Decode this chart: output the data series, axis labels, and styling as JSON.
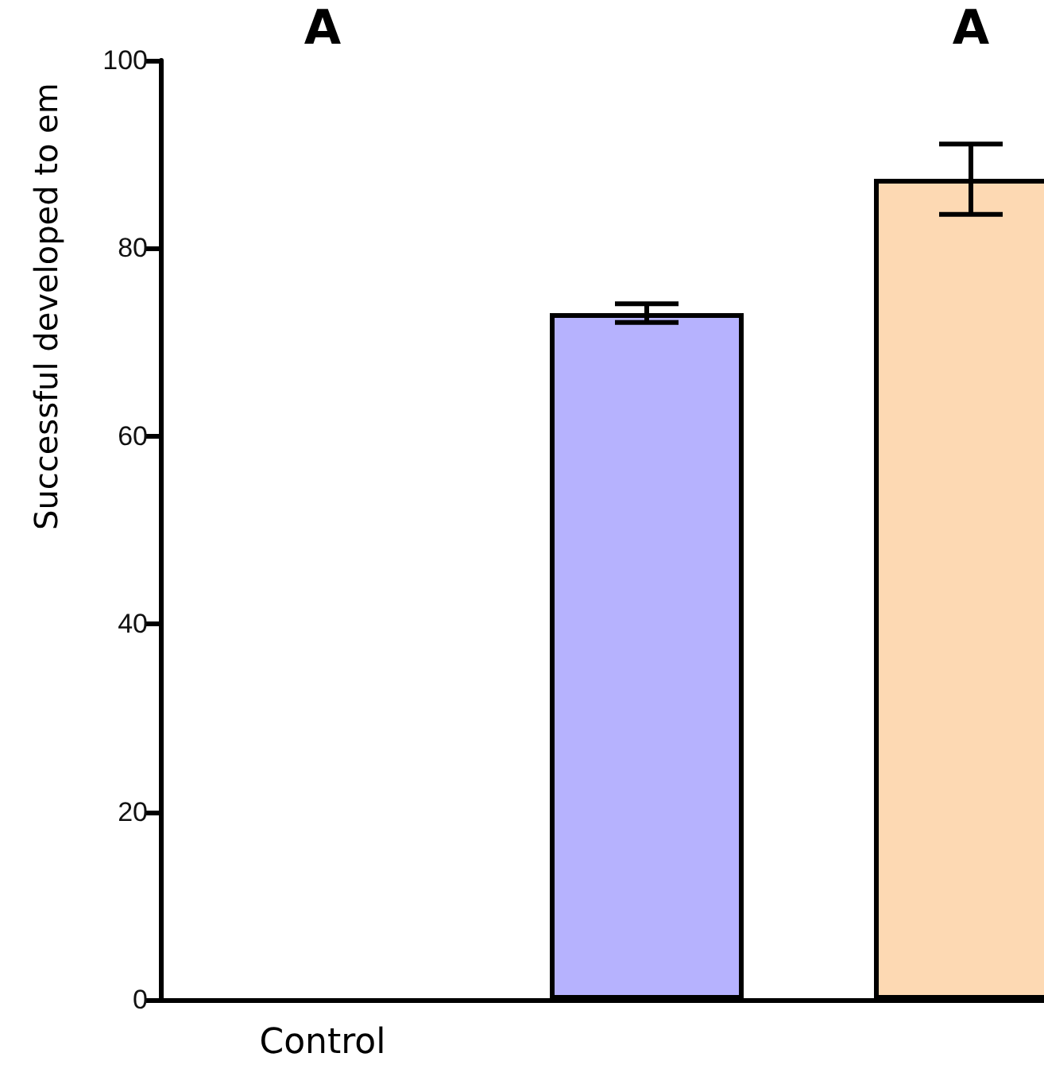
{
  "chart_data": {
    "type": "bar",
    "ylabel": "Successful developed to em",
    "categories": [
      "Control",
      null,
      null
    ],
    "values": [
      null,
      73.1,
      87.4
    ],
    "colors": [
      "#808080",
      "#b6b2fe",
      "#fdd9b3"
    ],
    "errors": [
      null,
      1,
      [
        83.6,
        91.1
      ]
    ],
    "ylim": [
      0,
      100
    ],
    "yticks": [
      0,
      20,
      40,
      60,
      80,
      100
    ],
    "annotations": [
      "A",
      "A"
    ],
    "grid": false
  }
}
